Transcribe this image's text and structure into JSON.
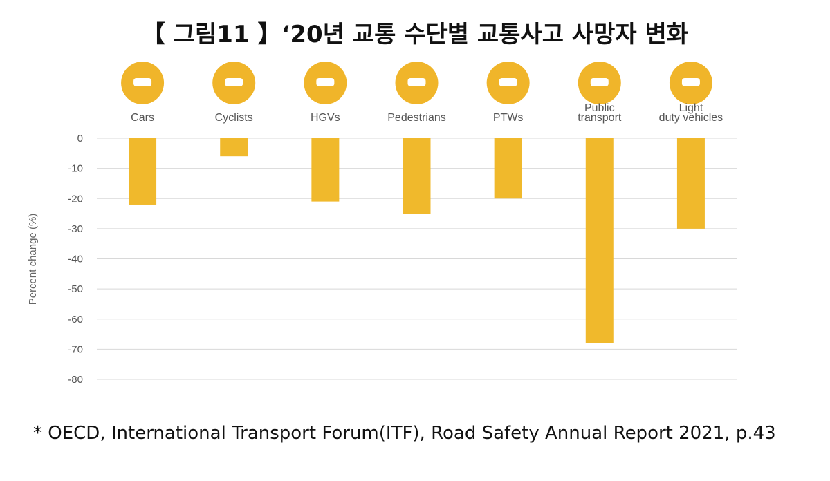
{
  "title": "【 그림11 】‘20년 교통 수단별 교통사고 사망자 변화",
  "footnote": "* OECD, International Transport Forum(ITF), Road Safety Annual Report 2021, p.43",
  "chart_data": {
    "type": "bar",
    "ylabel": "Percent change (%)",
    "categories": [
      "Cars",
      "Cyclists",
      "HGVs",
      "Pedestrians",
      "PTWs",
      "Public\ntransport",
      "Light\nduty vehicles"
    ],
    "values": [
      -22,
      -6,
      -21,
      -25,
      -20,
      -68,
      -30
    ],
    "color": "#f0b92c",
    "ylim": [
      -80,
      0
    ],
    "yticks": [
      0,
      -10,
      -20,
      -30,
      -40,
      -50,
      -60,
      -70,
      -80
    ],
    "grid": true
  }
}
